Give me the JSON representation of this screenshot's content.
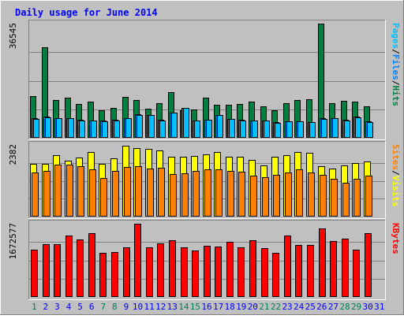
{
  "chart_data": {
    "type": "bar",
    "title": "Daily usage for June 2014",
    "categories": [
      "1",
      "2",
      "3",
      "4",
      "5",
      "6",
      "7",
      "8",
      "9",
      "10",
      "11",
      "12",
      "13",
      "14",
      "15",
      "16",
      "17",
      "18",
      "19",
      "20",
      "21",
      "22",
      "23",
      "24",
      "25",
      "26",
      "27",
      "28",
      "29",
      "30",
      "31"
    ],
    "weekend_days": [
      "1",
      "7",
      "8",
      "14",
      "15",
      "21",
      "22",
      "28",
      "29"
    ],
    "panels": [
      {
        "name": "top",
        "ymax_label": "36545",
        "ymax": 36545,
        "right_label_parts": [
          "Pages",
          "/",
          "Files",
          "/",
          "Hits"
        ],
        "series": [
          {
            "name": "Hits",
            "color": "#008040",
            "values": [
              13300,
              29100,
              12200,
              12800,
              10800,
              11600,
              8800,
              9500,
              13200,
              12000,
              9200,
              11100,
              14700,
              8900,
              9000,
              12800,
              10700,
              10500,
              10800,
              11500,
              10100,
              8800,
              11200,
              12000,
              12400,
              36500,
              11000,
              11800,
              11700,
              10200,
              0
            ]
          },
          {
            "name": "Files",
            "color": "#0080ff",
            "values": [
              6200,
              6800,
              6200,
              6400,
              5700,
              5600,
              5500,
              5700,
              6400,
              7500,
              7400,
              5700,
              8000,
              9500,
              5500,
              5700,
              7200,
              6000,
              5700,
              5600,
              5600,
              5000,
              5300,
              5400,
              5100,
              6200,
              6300,
              5700,
              6700,
              5200,
              0
            ]
          },
          {
            "name": "Pages",
            "color": "#00c0ff",
            "values": [
              6100,
              6600,
              6200,
              6300,
              5600,
              5500,
              5400,
              5600,
              6300,
              7400,
              7300,
              5600,
              8000,
              9500,
              5500,
              5700,
              7200,
              6000,
              5600,
              5500,
              5500,
              4900,
              5200,
              5300,
              5000,
              6100,
              6200,
              5600,
              6600,
              5100,
              0
            ]
          }
        ]
      },
      {
        "name": "middle",
        "ymax_label": "2382",
        "ymax": 2382,
        "right_label_parts": [
          "Sites",
          "/",
          "Visits"
        ],
        "series": [
          {
            "name": "Visits",
            "color": "#ffff00",
            "values": [
              1750,
              1760,
              2030,
              1860,
              1960,
              2150,
              1760,
              1950,
              2350,
              2280,
              2260,
              2200,
              1980,
              1990,
              2020,
              2070,
              2150,
              1990,
              1980,
              1880,
              1710,
              1990,
              2030,
              2150,
              2130,
              1680,
              1600,
              1700,
              1780,
              1840,
              0
            ]
          },
          {
            "name": "Sites",
            "color": "#ff8000",
            "values": [
              1470,
              1520,
              1720,
              1740,
              1670,
              1580,
              1280,
              1510,
              1650,
              1680,
              1600,
              1620,
              1420,
              1450,
              1510,
              1580,
              1570,
              1530,
              1480,
              1350,
              1300,
              1380,
              1470,
              1560,
              1460,
              1400,
              1250,
              1120,
              1260,
              1370,
              0
            ]
          }
        ]
      },
      {
        "name": "bottom",
        "ymax_label": "1672577",
        "ymax": 1672577,
        "right_label_parts": [
          "KBytes"
        ],
        "series": [
          {
            "name": "KBytes",
            "color": "#ff0000",
            "values": [
              1080000,
              1210000,
              1210000,
              1400000,
              1320000,
              1450000,
              1000000,
              1030000,
              1140000,
              1672000,
              1140000,
              1230000,
              1300000,
              1140000,
              1070000,
              1170000,
              1150000,
              1250000,
              1130000,
              1290000,
              1110000,
              1000000,
              1400000,
              1180000,
              1190000,
              1560000,
              1280000,
              1330000,
              1080000,
              1450000,
              0
            ]
          }
        ]
      }
    ],
    "colors": {
      "background": "#c0c0c0",
      "frame_light": "#ffffff",
      "frame_dark": "#808080",
      "title": "#0000ff",
      "weekday_label": "#0000ff",
      "weekend_label": "#00805c",
      "gridline": "#808080",
      "bar_outline": "#000000"
    }
  }
}
